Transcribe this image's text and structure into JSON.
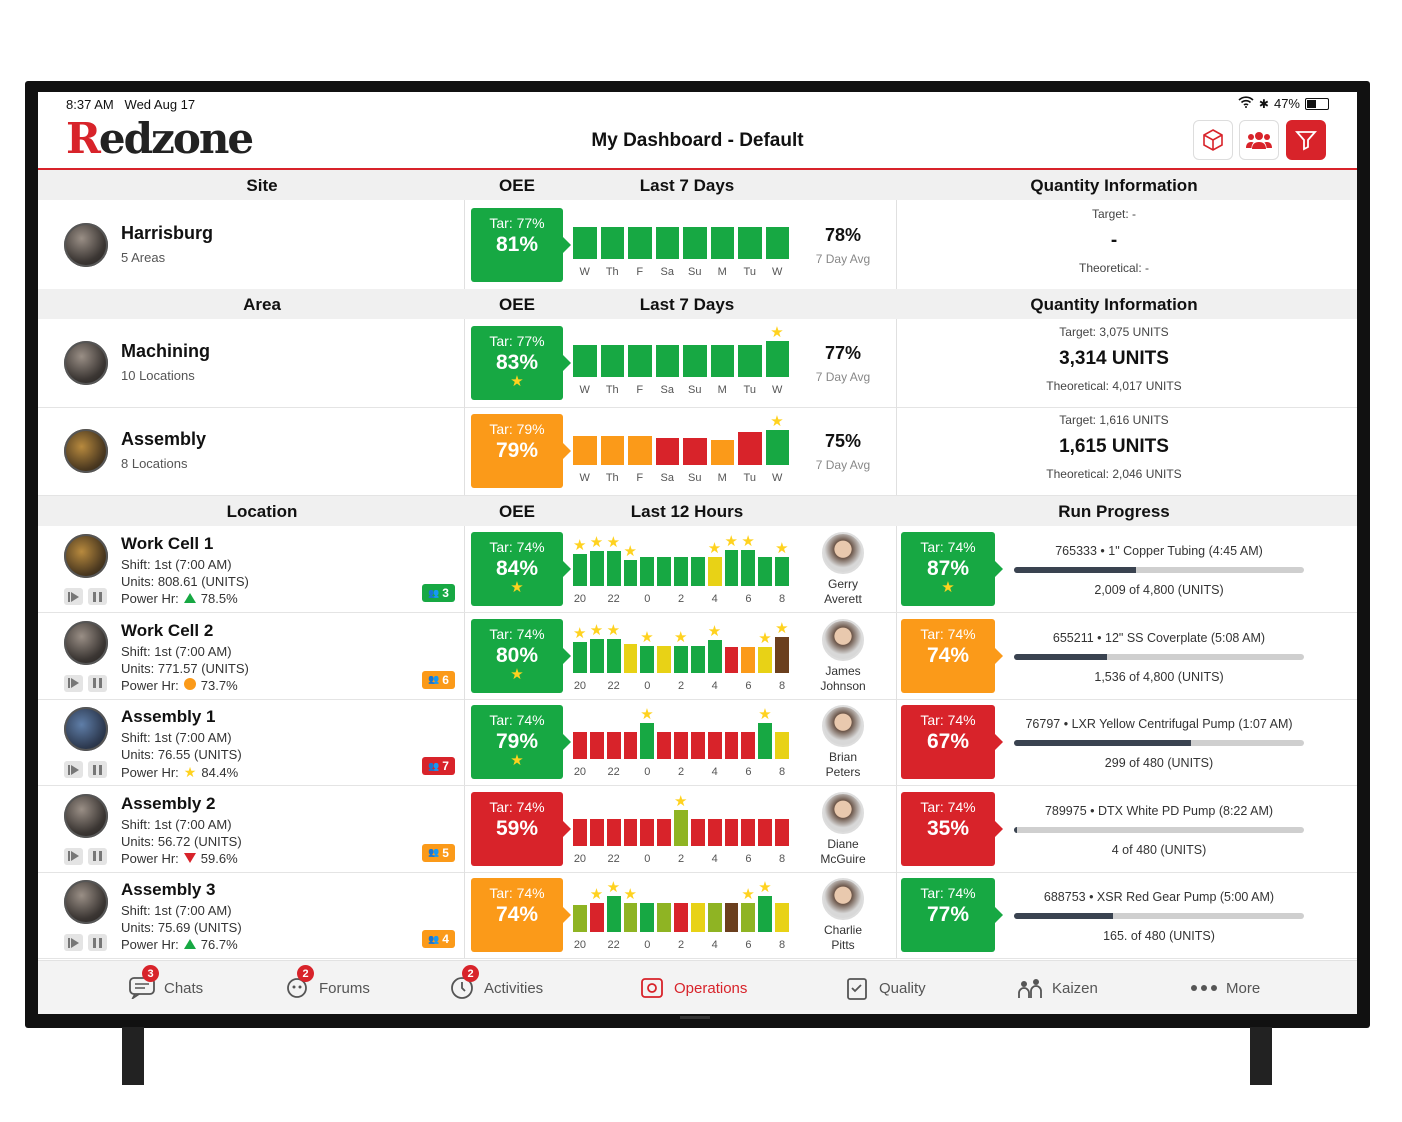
{
  "status_bar": {
    "time": "8:37 AM",
    "date": "Wed Aug 17",
    "battery": "47%",
    "battery_level": 0.47
  },
  "header": {
    "logo_first": "R",
    "logo_rest": "edzone",
    "title": "My Dashboard - Default",
    "icons": [
      "cube-icon",
      "team-icon",
      "filter-icon"
    ]
  },
  "colors": {
    "brand": "#d8232a",
    "good": "#17a843",
    "warning": "#fb9a19",
    "bad": "#d8232a",
    "yellow": "#ffd21f"
  },
  "site_section": {
    "headers": {
      "name": "Site",
      "oee": "OEE",
      "chart": "Last 7 Days",
      "qty": "Quantity Information"
    },
    "rows": [
      {
        "name": "Harrisburg",
        "sub": "5 Areas",
        "tar": "Tar: 77%",
        "oee": "81%",
        "status": "green",
        "star": false,
        "avg": "78%",
        "avg_label": "7 Day Avg",
        "days": [
          "W",
          "Th",
          "F",
          "Sa",
          "Su",
          "M",
          "Tu",
          "W"
        ],
        "bars": [
          {
            "h": 0.72,
            "c": "green"
          },
          {
            "h": 0.72,
            "c": "green"
          },
          {
            "h": 0.72,
            "c": "green"
          },
          {
            "h": 0.72,
            "c": "green"
          },
          {
            "h": 0.72,
            "c": "green"
          },
          {
            "h": 0.72,
            "c": "green"
          },
          {
            "h": 0.72,
            "c": "green"
          },
          {
            "h": 0.72,
            "c": "green"
          }
        ],
        "stars": [],
        "qty_target": "Target: -",
        "qty_main": "-",
        "qty_theoretical": "Theoretical: -"
      }
    ]
  },
  "area_section": {
    "headers": {
      "name": "Area",
      "oee": "OEE",
      "chart": "Last 7 Days",
      "qty": "Quantity Information"
    },
    "rows": [
      {
        "name": "Machining",
        "sub": "10 Locations",
        "tar": "Tar: 77%",
        "oee": "83%",
        "status": "green",
        "star": true,
        "avg": "77%",
        "avg_label": "7 Day Avg",
        "days": [
          "W",
          "Th",
          "F",
          "Sa",
          "Su",
          "M",
          "Tu",
          "W"
        ],
        "bars": [
          {
            "h": 0.72,
            "c": "green"
          },
          {
            "h": 0.72,
            "c": "green"
          },
          {
            "h": 0.72,
            "c": "green"
          },
          {
            "h": 0.72,
            "c": "green"
          },
          {
            "h": 0.72,
            "c": "green"
          },
          {
            "h": 0.72,
            "c": "green"
          },
          {
            "h": 0.72,
            "c": "green"
          },
          {
            "h": 0.82,
            "c": "green"
          }
        ],
        "stars": [
          7
        ],
        "qty_target": "Target: 3,075 UNITS",
        "qty_main": "3,314 UNITS",
        "qty_theoretical": "Theoretical: 4,017 UNITS"
      },
      {
        "name": "Assembly",
        "sub": "8 Locations",
        "tar": "Tar: 79%",
        "oee": "79%",
        "status": "orange",
        "star": false,
        "avg": "75%",
        "avg_label": "7 Day Avg",
        "days": [
          "W",
          "Th",
          "F",
          "Sa",
          "Su",
          "M",
          "Tu",
          "W"
        ],
        "bars": [
          {
            "h": 0.66,
            "c": "orange"
          },
          {
            "h": 0.66,
            "c": "orange"
          },
          {
            "h": 0.66,
            "c": "orange"
          },
          {
            "h": 0.62,
            "c": "red"
          },
          {
            "h": 0.62,
            "c": "red"
          },
          {
            "h": 0.56,
            "c": "orange"
          },
          {
            "h": 0.76,
            "c": "red"
          },
          {
            "h": 0.8,
            "c": "green"
          }
        ],
        "stars": [
          7
        ],
        "qty_target": "Target: 1,616 UNITS",
        "qty_main": "1,615 UNITS",
        "qty_theoretical": "Theoretical: 2,046 UNITS"
      }
    ]
  },
  "location_section": {
    "headers": {
      "name": "Location",
      "oee": "OEE",
      "chart": "Last 12 Hours",
      "progress": "Run Progress"
    },
    "hour_labels": [
      "20",
      "22",
      "0",
      "2",
      "4",
      "6",
      "8"
    ],
    "rows": [
      {
        "name": "Work Cell 1",
        "shift": "Shift: 1st (7:00 AM)",
        "units": "Units: 808.61 (UNITS)",
        "power_label": "Power Hr:",
        "power_value": "78.5%",
        "power_icon": "up-triangle-icon",
        "people": "3",
        "people_status": "green",
        "tar": "Tar: 74%",
        "oee": "84%",
        "status": "green",
        "star": true,
        "bars": [
          {
            "h": 0.72,
            "c": "green"
          },
          {
            "h": 0.8,
            "c": "green"
          },
          {
            "h": 0.8,
            "c": "green"
          },
          {
            "h": 0.6,
            "c": "green"
          },
          {
            "h": 0.65,
            "c": "green"
          },
          {
            "h": 0.65,
            "c": "green"
          },
          {
            "h": 0.65,
            "c": "green"
          },
          {
            "h": 0.65,
            "c": "green"
          },
          {
            "h": 0.65,
            "c": "yellow"
          },
          {
            "h": 0.82,
            "c": "green"
          },
          {
            "h": 0.82,
            "c": "green"
          },
          {
            "h": 0.65,
            "c": "green"
          },
          {
            "h": 0.65,
            "c": "green"
          }
        ],
        "stars": [
          0,
          1,
          2,
          3,
          8,
          9,
          10,
          12
        ],
        "operator": [
          "Gerry",
          "Averett"
        ],
        "rp_tar": "Tar: 74%",
        "rp_oee": "87%",
        "rp_status": "green",
        "rp_star": true,
        "run_title": "765333 • 1\" Copper Tubing (4:45 AM)",
        "run_count": "2,009 of 4,800 (UNITS)",
        "run_fraction": 0.42
      },
      {
        "name": "Work Cell 2",
        "shift": "Shift: 1st (7:00 AM)",
        "units": "Units: 771.57 (UNITS)",
        "power_label": "Power Hr:",
        "power_value": "73.7%",
        "power_icon": "circle-icon",
        "people": "6",
        "people_status": "orange",
        "tar": "Tar: 74%",
        "oee": "80%",
        "status": "green",
        "star": true,
        "bars": [
          {
            "h": 0.7,
            "c": "green"
          },
          {
            "h": 0.78,
            "c": "green"
          },
          {
            "h": 0.78,
            "c": "green"
          },
          {
            "h": 0.65,
            "c": "yellow"
          },
          {
            "h": 0.62,
            "c": "green"
          },
          {
            "h": 0.62,
            "c": "yellow"
          },
          {
            "h": 0.62,
            "c": "green"
          },
          {
            "h": 0.62,
            "c": "green"
          },
          {
            "h": 0.76,
            "c": "green"
          },
          {
            "h": 0.6,
            "c": "red"
          },
          {
            "h": 0.6,
            "c": "orange"
          },
          {
            "h": 0.6,
            "c": "yellow"
          },
          {
            "h": 0.82,
            "c": "brown"
          }
        ],
        "stars": [
          0,
          1,
          2,
          4,
          6,
          8,
          11,
          12
        ],
        "operator": [
          "James",
          "Johnson"
        ],
        "rp_tar": "Tar: 74%",
        "rp_oee": "74%",
        "rp_status": "orange",
        "rp_star": false,
        "run_title": "655211 • 12\" SS Coverplate (5:08 AM)",
        "run_count": "1,536 of 4,800 (UNITS)",
        "run_fraction": 0.32
      },
      {
        "name": "Assembly 1",
        "shift": "Shift: 1st (7:00 AM)",
        "units": "Units: 76.55 (UNITS)",
        "power_label": "Power Hr:",
        "power_value": "84.4%",
        "power_icon": "star-icon",
        "people": "7",
        "people_status": "red",
        "tar": "Tar: 74%",
        "oee": "79%",
        "status": "green",
        "star": true,
        "bars": [
          {
            "h": 0.62,
            "c": "red"
          },
          {
            "h": 0.62,
            "c": "red"
          },
          {
            "h": 0.62,
            "c": "red"
          },
          {
            "h": 0.62,
            "c": "red"
          },
          {
            "h": 0.82,
            "c": "green"
          },
          {
            "h": 0.62,
            "c": "red"
          },
          {
            "h": 0.62,
            "c": "red"
          },
          {
            "h": 0.62,
            "c": "red"
          },
          {
            "h": 0.62,
            "c": "red"
          },
          {
            "h": 0.62,
            "c": "red"
          },
          {
            "h": 0.62,
            "c": "red"
          },
          {
            "h": 0.82,
            "c": "green"
          },
          {
            "h": 0.62,
            "c": "yellow"
          }
        ],
        "stars": [
          4,
          11
        ],
        "operator": [
          "Brian",
          "Peters"
        ],
        "rp_tar": "Tar: 74%",
        "rp_oee": "67%",
        "rp_status": "red",
        "rp_star": false,
        "run_title": "76797 • LXR Yellow Centrifugal Pump (1:07 AM)",
        "run_count": "299 of 480 (UNITS)",
        "run_fraction": 0.61
      },
      {
        "name": "Assembly 2",
        "shift": "Shift: 1st (7:00 AM)",
        "units": "Units: 56.72 (UNITS)",
        "power_label": "Power Hr:",
        "power_value": "59.6%",
        "power_icon": "down-triangle-icon",
        "people": "5",
        "people_status": "orange",
        "tar": "Tar: 74%",
        "oee": "59%",
        "status": "red",
        "star": false,
        "bars": [
          {
            "h": 0.62,
            "c": "red"
          },
          {
            "h": 0.62,
            "c": "red"
          },
          {
            "h": 0.62,
            "c": "red"
          },
          {
            "h": 0.62,
            "c": "red"
          },
          {
            "h": 0.62,
            "c": "red"
          },
          {
            "h": 0.62,
            "c": "red"
          },
          {
            "h": 0.82,
            "c": "olive"
          },
          {
            "h": 0.62,
            "c": "red"
          },
          {
            "h": 0.62,
            "c": "red"
          },
          {
            "h": 0.62,
            "c": "red"
          },
          {
            "h": 0.62,
            "c": "red"
          },
          {
            "h": 0.62,
            "c": "red"
          },
          {
            "h": 0.62,
            "c": "red"
          }
        ],
        "stars": [
          6
        ],
        "operator": [
          "Diane",
          "McGuire"
        ],
        "rp_tar": "Tar: 74%",
        "rp_oee": "35%",
        "rp_status": "red",
        "rp_star": false,
        "run_title": "789975 • DTX White PD Pump (8:22 AM)",
        "run_count": "4 of 480 (UNITS)",
        "run_fraction": 0.01
      },
      {
        "name": "Assembly 3",
        "shift": "Shift: 1st (7:00 AM)",
        "units": "Units: 75.69 (UNITS)",
        "power_label": "Power Hr:",
        "power_value": "76.7%",
        "power_icon": "up-triangle-icon",
        "people": "4",
        "people_status": "orange",
        "tar": "Tar: 74%",
        "oee": "74%",
        "status": "orange",
        "star": false,
        "bars": [
          {
            "h": 0.62,
            "c": "olive"
          },
          {
            "h": 0.66,
            "c": "red"
          },
          {
            "h": 0.82,
            "c": "green"
          },
          {
            "h": 0.66,
            "c": "olive"
          },
          {
            "h": 0.66,
            "c": "green"
          },
          {
            "h": 0.66,
            "c": "olive"
          },
          {
            "h": 0.66,
            "c": "red"
          },
          {
            "h": 0.66,
            "c": "yellow"
          },
          {
            "h": 0.66,
            "c": "olive"
          },
          {
            "h": 0.66,
            "c": "brown"
          },
          {
            "h": 0.66,
            "c": "olive"
          },
          {
            "h": 0.82,
            "c": "green"
          },
          {
            "h": 0.66,
            "c": "yellow"
          }
        ],
        "stars": [
          1,
          2,
          3,
          10,
          11
        ],
        "operator": [
          "Charlie",
          "Pitts"
        ],
        "rp_tar": "Tar: 74%",
        "rp_oee": "77%",
        "rp_status": "green",
        "rp_star": false,
        "run_title": "688753 • XSR Red Gear Pump (5:00 AM)",
        "run_count": "165. of 480 (UNITS)",
        "run_fraction": 0.34
      }
    ]
  },
  "tabbar": [
    {
      "label": "Chats",
      "icon": "chat-icon",
      "badge": "3",
      "active": false
    },
    {
      "label": "Forums",
      "icon": "forum-icon",
      "badge": "2",
      "active": false
    },
    {
      "label": "Activities",
      "icon": "clock-icon",
      "badge": "2",
      "active": false
    },
    {
      "label": "Operations",
      "icon": "operations-icon",
      "badge": "",
      "active": true
    },
    {
      "label": "Quality",
      "icon": "clipboard-icon",
      "badge": "",
      "active": false
    },
    {
      "label": "Kaizen",
      "icon": "kaizen-icon",
      "badge": "",
      "active": false
    },
    {
      "label": "More",
      "icon": "more-icon",
      "badge": "",
      "active": false
    }
  ]
}
